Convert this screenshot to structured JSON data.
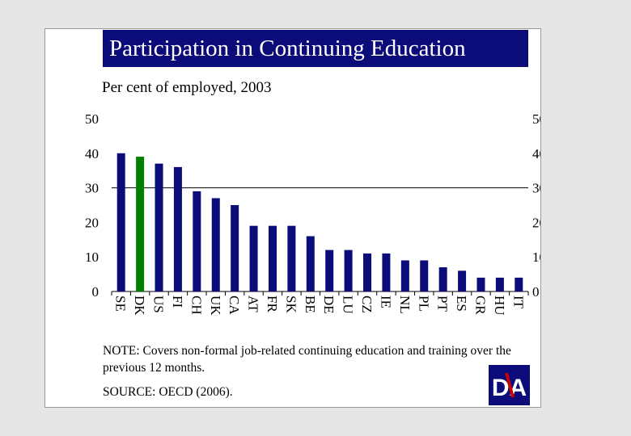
{
  "title": "Participation in Continuing Education",
  "subtitle": "Per cent of employed, 2003",
  "note": "NOTE: Covers non-formal job-related continuing education and training over the previous 12 months.",
  "source": "SOURCE: OECD (2006).",
  "logo": {
    "icon": "da-logo",
    "text": "DA",
    "bg_color": "#0b0b7a",
    "mark_color": "#cc0000"
  },
  "chart_data": {
    "type": "bar",
    "categories": [
      "SE",
      "DK",
      "US",
      "FI",
      "CH",
      "UK",
      "CA",
      "AT",
      "FR",
      "SK",
      "BE",
      "DE",
      "LU",
      "CZ",
      "IE",
      "NL",
      "PL",
      "PT",
      "ES",
      "GR",
      "HU",
      "IT"
    ],
    "values": [
      40,
      39,
      37,
      36,
      29,
      27,
      25,
      19,
      19,
      19,
      16,
      12,
      12,
      11,
      11,
      9,
      9,
      7,
      6,
      4,
      4,
      4
    ],
    "highlight_category": "DK",
    "bar_color": "#0b0b7a",
    "highlight_color": "#008000",
    "ylim": [
      0,
      50
    ],
    "yticks": [
      0,
      10,
      20,
      30,
      40,
      50
    ],
    "reference_line": 30,
    "grid": false,
    "dual_y_axis": true,
    "category_labels_rotated": true
  }
}
